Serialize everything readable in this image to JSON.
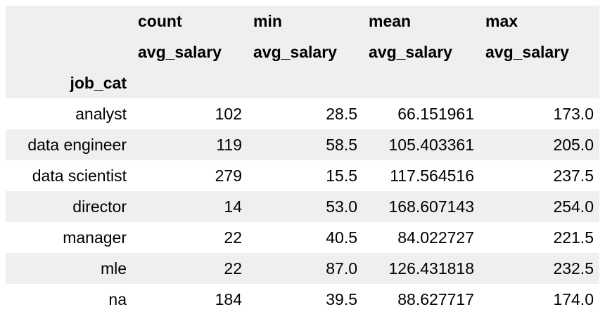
{
  "table": {
    "stat_headers": [
      "count",
      "min",
      "mean",
      "max"
    ],
    "column_headers": [
      "avg_salary",
      "avg_salary",
      "avg_salary",
      "avg_salary"
    ],
    "index_name": "job_cat",
    "rows": [
      {
        "label": "analyst",
        "values": [
          "102",
          "28.5",
          "66.151961",
          "173.0"
        ]
      },
      {
        "label": "data engineer",
        "values": [
          "119",
          "58.5",
          "105.403361",
          "205.0"
        ]
      },
      {
        "label": "data scientist",
        "values": [
          "279",
          "15.5",
          "117.564516",
          "237.5"
        ]
      },
      {
        "label": "director",
        "values": [
          "14",
          "53.0",
          "168.607143",
          "254.0"
        ]
      },
      {
        "label": "manager",
        "values": [
          "22",
          "40.5",
          "84.022727",
          "221.5"
        ]
      },
      {
        "label": "mle",
        "values": [
          "22",
          "87.0",
          "126.431818",
          "232.5"
        ]
      },
      {
        "label": "na",
        "values": [
          "184",
          "39.5",
          "88.627717",
          "174.0"
        ]
      }
    ]
  },
  "colors": {
    "stripe": "#efefef",
    "background": "#ffffff",
    "text": "#000000"
  }
}
